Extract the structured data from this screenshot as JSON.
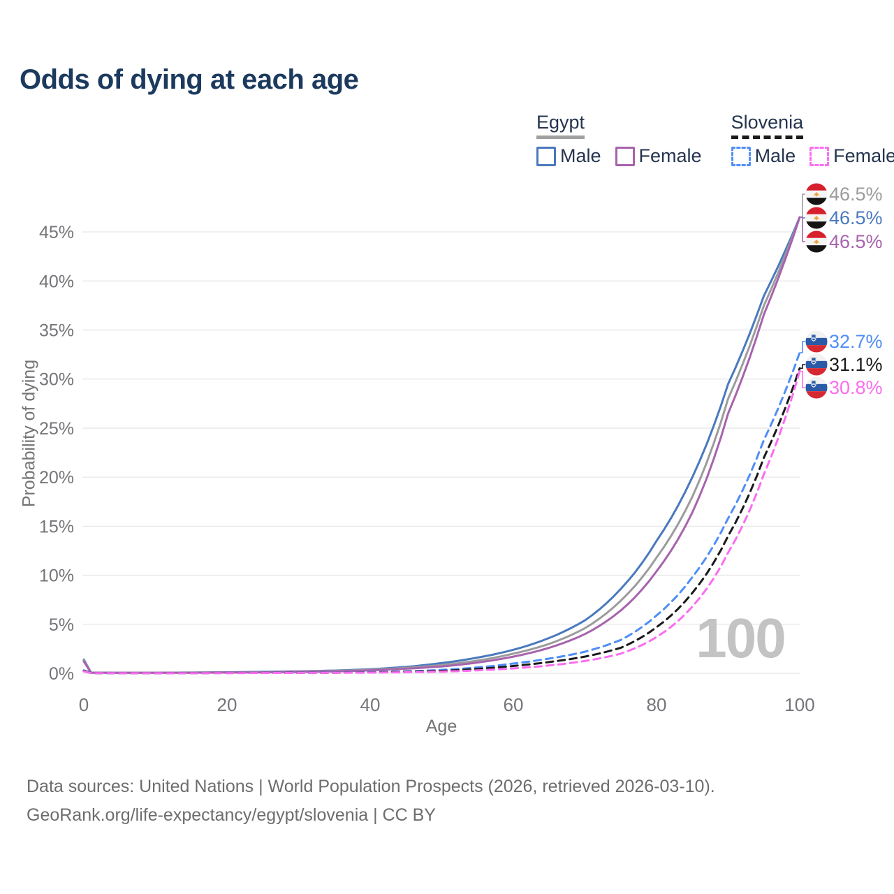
{
  "title": "Odds of dying at each age",
  "age_counter": "100",
  "legend": {
    "groups": [
      {
        "country": "Egypt",
        "line_style": "solid",
        "line_color": "#a0a0a0",
        "items": [
          {
            "label": "Male",
            "color": "#4a79bd"
          },
          {
            "label": "Female",
            "color": "#a763ad"
          }
        ]
      },
      {
        "country": "Slovenia",
        "line_style": "dashed",
        "line_color": "#1a1a1a",
        "items": [
          {
            "label": "Male",
            "color": "#4f8ef7"
          },
          {
            "label": "Female",
            "color": "#fb6df0"
          }
        ]
      }
    ]
  },
  "axes": {
    "x_label": "Age",
    "y_label": "Probability of dying"
  },
  "footer": {
    "line1": "Data sources: United Nations | World Population Prospects (2026, retrieved 2026-03-10).",
    "line2": "GeoRank.org/life-expectancy/egypt/slovenia | CC BY"
  },
  "chart_data": {
    "type": "line",
    "title": "Odds of dying at each age",
    "xlabel": "Age",
    "ylabel": "Probability of dying",
    "xlim": [
      0,
      100
    ],
    "ylim_pct": [
      0,
      48
    ],
    "x_ticks": [
      0,
      20,
      40,
      60,
      80,
      100
    ],
    "y_ticks_pct": [
      0,
      5,
      10,
      15,
      20,
      25,
      30,
      35,
      40,
      45
    ],
    "y_tick_suffix": "%",
    "grid": true,
    "legend_position": "top-right",
    "ages": [
      0,
      1,
      5,
      10,
      15,
      20,
      25,
      30,
      35,
      40,
      45,
      50,
      55,
      60,
      65,
      70,
      75,
      80,
      85,
      90,
      95,
      100
    ],
    "series": [
      {
        "id": "egypt-male",
        "name": "Egypt Male",
        "country": "Egypt",
        "sex": "Male",
        "style": "solid",
        "color": "#4a79bd",
        "end_value_pct": 46.5,
        "values_pct": [
          1.4,
          0.08,
          0.06,
          0.06,
          0.08,
          0.11,
          0.15,
          0.2,
          0.28,
          0.42,
          0.65,
          1.05,
          1.6,
          2.4,
          3.6,
          5.4,
          8.6,
          13.5,
          20.0,
          29.5,
          38.5,
          46.5
        ]
      },
      {
        "id": "egypt-both",
        "name": "Egypt Both sexes",
        "country": "Egypt",
        "sex": "Both",
        "style": "solid",
        "color": "#9c9c9c",
        "end_value_pct": 46.5,
        "values_pct": [
          1.3,
          0.07,
          0.05,
          0.05,
          0.07,
          0.09,
          0.12,
          0.17,
          0.24,
          0.36,
          0.55,
          0.85,
          1.3,
          2.0,
          3.0,
          4.6,
          7.4,
          11.8,
          18.0,
          28.0,
          37.5,
          46.5
        ]
      },
      {
        "id": "egypt-female",
        "name": "Egypt Female",
        "country": "Egypt",
        "sex": "Female",
        "style": "solid",
        "color": "#a763ad",
        "end_value_pct": 46.5,
        "values_pct": [
          1.2,
          0.06,
          0.05,
          0.05,
          0.06,
          0.08,
          0.1,
          0.14,
          0.2,
          0.3,
          0.47,
          0.7,
          1.1,
          1.7,
          2.6,
          4.0,
          6.4,
          10.4,
          16.4,
          26.5,
          36.6,
          46.5
        ]
      },
      {
        "id": "slovenia-male",
        "name": "Slovenia Male",
        "country": "Slovenia",
        "sex": "Male",
        "style": "dashed",
        "color": "#4f8ef7",
        "end_value_pct": 32.7,
        "values_pct": [
          0.3,
          0.03,
          0.01,
          0.01,
          0.02,
          0.04,
          0.05,
          0.06,
          0.08,
          0.12,
          0.2,
          0.35,
          0.6,
          1.0,
          1.5,
          2.2,
          3.4,
          5.9,
          9.8,
          15.8,
          23.8,
          32.7
        ]
      },
      {
        "id": "slovenia-both",
        "name": "Slovenia Both sexes",
        "country": "Slovenia",
        "sex": "Both",
        "style": "dashed",
        "color": "#1a1a1a",
        "end_value_pct": 31.1,
        "values_pct": [
          0.25,
          0.02,
          0.01,
          0.01,
          0.02,
          0.03,
          0.04,
          0.05,
          0.06,
          0.09,
          0.15,
          0.25,
          0.45,
          0.75,
          1.15,
          1.7,
          2.6,
          4.7,
          8.2,
          14.0,
          22.0,
          31.1
        ]
      },
      {
        "id": "slovenia-female",
        "name": "Slovenia Female",
        "country": "Slovenia",
        "sex": "Female",
        "style": "dashed",
        "color": "#fb6df0",
        "end_value_pct": 30.8,
        "values_pct": [
          0.2,
          0.02,
          0.01,
          0.01,
          0.01,
          0.02,
          0.03,
          0.04,
          0.05,
          0.07,
          0.11,
          0.17,
          0.3,
          0.5,
          0.8,
          1.25,
          2.0,
          3.7,
          6.8,
          12.3,
          20.3,
          30.8
        ]
      }
    ]
  },
  "end_labels": [
    {
      "series_id": "egypt-both",
      "value_label": "46.5%",
      "flag": "egypt"
    },
    {
      "series_id": "egypt-male",
      "value_label": "46.5%",
      "flag": "egypt"
    },
    {
      "series_id": "egypt-female",
      "value_label": "46.5%",
      "flag": "egypt"
    },
    {
      "series_id": "slovenia-male",
      "value_label": "32.7%",
      "flag": "slovenia"
    },
    {
      "series_id": "slovenia-both",
      "value_label": "31.1%",
      "flag": "slovenia"
    },
    {
      "series_id": "slovenia-female",
      "value_label": "30.8%",
      "flag": "slovenia"
    }
  ]
}
